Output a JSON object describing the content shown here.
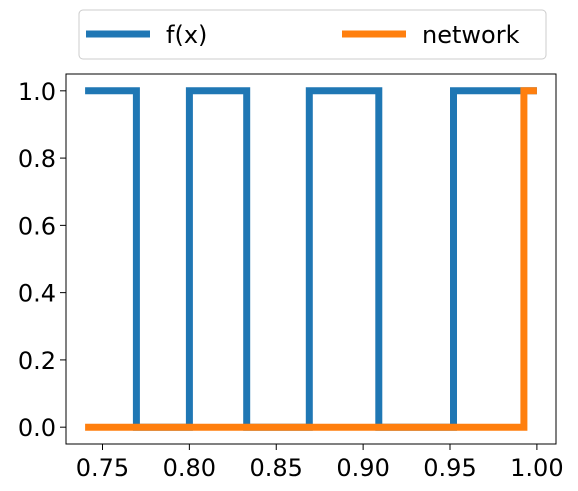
{
  "chart_data": {
    "type": "line",
    "title": "",
    "xlabel": "",
    "ylabel": "",
    "xlim": [
      0.729,
      1.011
    ],
    "ylim": [
      -0.05,
      1.05
    ],
    "xticks": [
      0.75,
      0.8,
      0.85,
      0.9,
      0.95,
      1.0
    ],
    "xtick_labels": [
      "0.75",
      "0.80",
      "0.85",
      "0.90",
      "0.95",
      "1.00"
    ],
    "yticks": [
      0.0,
      0.2,
      0.4,
      0.6,
      0.8,
      1.0
    ],
    "ytick_labels": [
      "0.0",
      "0.2",
      "0.4",
      "0.6",
      "0.8",
      "1.0"
    ],
    "grid": false,
    "legend": {
      "placement": "top-center-outside",
      "columns": 2
    },
    "series": [
      {
        "name": "f(x)",
        "color": "#1f77b4",
        "x": [
          0.74,
          0.7695,
          0.7695,
          0.8,
          0.8,
          0.833,
          0.833,
          0.869,
          0.869,
          0.909,
          0.909,
          0.952,
          0.952,
          1.0
        ],
        "y": [
          1,
          1,
          0,
          0,
          1,
          1,
          0,
          0,
          1,
          1,
          0,
          0,
          1,
          1
        ]
      },
      {
        "name": "network",
        "color": "#ff7f0e",
        "x": [
          0.74,
          0.9925,
          0.9925,
          1.0
        ],
        "y": [
          0,
          0,
          1,
          1
        ]
      }
    ]
  }
}
